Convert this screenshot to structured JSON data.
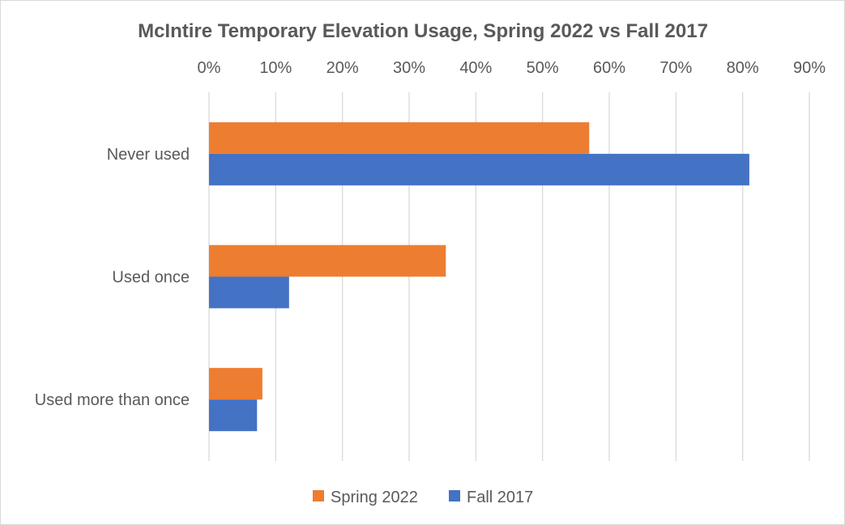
{
  "chart_data": {
    "type": "bar",
    "orientation": "horizontal",
    "title": "McIntire Temporary Elevation Usage, Spring 2022 vs Fall 2017",
    "categories": [
      "Never used",
      "Used once",
      "Used more than once"
    ],
    "series": [
      {
        "name": "Spring 2022",
        "color": "#ed7d31",
        "values": [
          57,
          35.5,
          8
        ]
      },
      {
        "name": "Fall 2017",
        "color": "#4472c4",
        "values": [
          81,
          12,
          7.2
        ]
      }
    ],
    "xlim": [
      0,
      90
    ],
    "x_ticks": [
      "0%",
      "10%",
      "20%",
      "30%",
      "40%",
      "50%",
      "60%",
      "70%",
      "80%",
      "90%"
    ],
    "x_axis_position": "top",
    "grid": true,
    "legend_position": "bottom"
  }
}
